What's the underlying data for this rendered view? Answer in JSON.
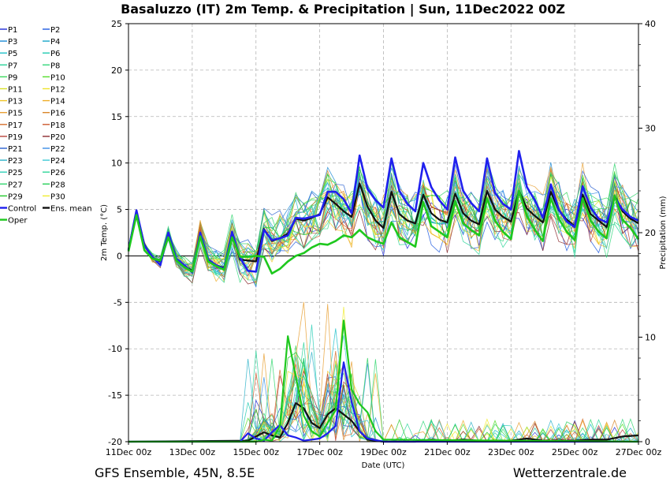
{
  "chart_data": {
    "type": "line",
    "title": "Basaluzzo  (IT)  2m Temp. & Precipitation | Sun, 11Dec2022 00Z",
    "xlabel": "Date (UTC)",
    "ylabel_left": "2m Temp. (°C)",
    "ylabel_right": "Precipitation (mm)",
    "xlim": [
      0,
      16
    ],
    "ylim_left": [
      -20,
      25
    ],
    "ylim_right": [
      0,
      40
    ],
    "yticks_left": [
      "-20",
      "-15",
      "-10",
      "-5",
      "0",
      "5",
      "10",
      "15",
      "20",
      "25"
    ],
    "yticks_right": [
      "0",
      "10",
      "20",
      "30",
      "40"
    ],
    "xticks": [
      {
        "v": 0,
        "label": "11Dec 00z"
      },
      {
        "v": 2,
        "label": "13Dec 00z"
      },
      {
        "v": 4,
        "label": "15Dec 00z"
      },
      {
        "v": 6,
        "label": "17Dec 00z"
      },
      {
        "v": 8,
        "label": "19Dec 00z"
      },
      {
        "v": 10,
        "label": "21Dec 00z"
      },
      {
        "v": 12,
        "label": "23Dec 00z"
      },
      {
        "v": 14,
        "label": "25Dec 00z"
      },
      {
        "v": 16,
        "label": "27Dec 00z"
      }
    ],
    "grid": true,
    "legend_position": "left",
    "legend": [
      {
        "name": "P1",
        "color": "#1f2bd6"
      },
      {
        "name": "P2",
        "color": "#1f5ae0"
      },
      {
        "name": "P3",
        "color": "#1c8ad6"
      },
      {
        "name": "P4",
        "color": "#19a6c9"
      },
      {
        "name": "P5",
        "color": "#1fc0c9"
      },
      {
        "name": "P6",
        "color": "#22cbb0"
      },
      {
        "name": "P7",
        "color": "#2ad39a"
      },
      {
        "name": "P8",
        "color": "#34d77c"
      },
      {
        "name": "P9",
        "color": "#3ad95c"
      },
      {
        "name": "P10",
        "color": "#55dd2a"
      },
      {
        "name": "P11",
        "color": "#d8e02a"
      },
      {
        "name": "P12",
        "color": "#eee22c"
      },
      {
        "name": "P13",
        "color": "#f0c52a"
      },
      {
        "name": "P14",
        "color": "#eeae2a"
      },
      {
        "name": "P15",
        "color": "#e8a034"
      },
      {
        "name": "P16",
        "color": "#d9872a"
      },
      {
        "name": "P17",
        "color": "#d66f2c"
      },
      {
        "name": "P18",
        "color": "#cc5a2e"
      },
      {
        "name": "P19",
        "color": "#b8423a"
      },
      {
        "name": "P20",
        "color": "#8c2a2e"
      },
      {
        "name": "P21",
        "color": "#2a5fd0"
      },
      {
        "name": "P22",
        "color": "#3b8fe6"
      },
      {
        "name": "P23",
        "color": "#2fb3c9"
      },
      {
        "name": "P24",
        "color": "#3fcad6"
      },
      {
        "name": "P25",
        "color": "#2fd0b9"
      },
      {
        "name": "P26",
        "color": "#2fd69a"
      },
      {
        "name": "P27",
        "color": "#33d770"
      },
      {
        "name": "P28",
        "color": "#28d05a"
      },
      {
        "name": "P29",
        "color": "#22c82a"
      },
      {
        "name": "P30",
        "color": "#f0ec30"
      },
      {
        "name": "Control",
        "color": "#2020ee"
      },
      {
        "name": "Ens. mean",
        "color": "#111111"
      },
      {
        "name": "Oper",
        "color": "#1ec81e"
      }
    ],
    "series": [
      {
        "name": "Ens. mean",
        "axis": "left",
        "color": "#111111",
        "x": [
          0,
          0.25,
          0.5,
          0.75,
          1,
          1.25,
          1.5,
          1.75,
          2,
          2.25,
          2.5,
          2.75,
          3,
          3.25,
          3.5,
          3.75,
          4,
          4.25,
          4.5,
          4.75,
          5,
          5.25,
          5.5,
          5.75,
          6,
          6.25,
          6.5,
          6.75,
          7,
          7.25,
          7.5,
          7.75,
          8,
          8.25,
          8.5,
          8.75,
          9,
          9.25,
          9.5,
          9.75,
          10,
          10.25,
          10.5,
          10.75,
          11,
          11.25,
          11.5,
          11.75,
          12,
          12.25,
          12.5,
          12.75,
          13,
          13.25,
          13.5,
          13.75,
          14,
          14.25,
          14.5,
          14.75,
          15,
          15.25,
          15.5,
          15.75,
          16
        ],
        "y": [
          0.7,
          4.8,
          1.2,
          -0.2,
          -0.6,
          2.4,
          -0.3,
          -1.1,
          -1.6,
          2.4,
          -0.4,
          -1.0,
          -1.3,
          2.3,
          -0.4,
          -0.5,
          -0.6,
          2.9,
          1.6,
          1.9,
          2.4,
          4.0,
          3.8,
          4.1,
          4.5,
          6.3,
          5.6,
          4.8,
          4.2,
          7.8,
          5.3,
          3.8,
          3.0,
          6.9,
          4.5,
          3.8,
          3.5,
          6.6,
          4.6,
          3.9,
          3.6,
          6.7,
          4.6,
          3.8,
          3.4,
          7.0,
          5.0,
          4.2,
          3.7,
          7.0,
          5.1,
          4.3,
          3.6,
          6.9,
          4.9,
          3.9,
          3.2,
          6.6,
          4.5,
          3.8,
          3.1,
          6.5,
          4.8,
          4.0,
          3.5
        ]
      },
      {
        "name": "Control",
        "axis": "left",
        "color": "#2020ee",
        "x": [
          0,
          0.25,
          0.5,
          0.75,
          1,
          1.25,
          1.5,
          1.75,
          2,
          2.25,
          2.5,
          2.75,
          3,
          3.25,
          3.5,
          3.75,
          4,
          4.25,
          4.5,
          4.75,
          5,
          5.25,
          5.5,
          5.75,
          6,
          6.25,
          6.5,
          6.75,
          7,
          7.25,
          7.5,
          7.75,
          8,
          8.25,
          8.5,
          8.75,
          9,
          9.25,
          9.5,
          9.75,
          10,
          10.25,
          10.5,
          10.75,
          11,
          11.25,
          11.5,
          11.75,
          12,
          12.25,
          12.5,
          12.75,
          13,
          13.25,
          13.5,
          13.75,
          14,
          14.25,
          14.5,
          14.75,
          15,
          15.25,
          15.5,
          15.75,
          16
        ],
        "y": [
          0.6,
          4.9,
          1.1,
          -0.1,
          -1.0,
          2.5,
          -0.3,
          -1.0,
          -1.8,
          2.5,
          -0.4,
          -1.0,
          -1.4,
          2.6,
          -0.2,
          -1.6,
          -1.7,
          2.8,
          1.7,
          1.9,
          2.2,
          4.1,
          4.0,
          4.2,
          4.4,
          6.9,
          6.9,
          6.1,
          4.6,
          10.8,
          7.2,
          6.0,
          5.2,
          10.5,
          7.0,
          5.6,
          4.8,
          10.0,
          7.4,
          6.0,
          5.0,
          10.6,
          7.0,
          5.7,
          4.8,
          10.5,
          6.8,
          5.6,
          5.0,
          11.3,
          7.4,
          6.0,
          4.1,
          7.7,
          5.0,
          3.7,
          3.1,
          7.5,
          5.2,
          4.0,
          3.6,
          6.3,
          5.0,
          4.2,
          3.8
        ]
      },
      {
        "name": "Oper",
        "axis": "left",
        "color": "#1ec81e",
        "x": [
          0,
          0.25,
          0.5,
          0.75,
          1,
          1.25,
          1.5,
          1.75,
          2,
          2.25,
          2.5,
          2.75,
          3,
          3.25,
          3.5,
          3.75,
          4,
          4.25,
          4.5,
          4.75,
          5,
          5.25,
          5.5,
          5.75,
          6,
          6.25,
          6.5,
          6.75,
          7,
          7.25,
          7.5,
          7.75,
          8,
          8.25,
          8.5,
          8.75,
          9,
          9.25,
          9.5,
          9.75,
          10,
          10.25,
          10.5,
          10.75,
          11,
          11.25,
          11.5,
          11.75,
          12,
          12.25,
          12.5,
          12.75,
          13,
          13.25,
          13.5,
          13.75,
          14,
          14.25,
          14.5,
          14.75,
          15,
          15.25,
          15.5,
          15.75,
          16
        ],
        "y": [
          0.5,
          4.4,
          0.6,
          -0.3,
          -0.5,
          2.0,
          -0.5,
          -1.2,
          -1.7,
          2.1,
          -0.6,
          -1.1,
          -1.5,
          2.0,
          -0.1,
          -0.1,
          0.0,
          -0.1,
          -1.9,
          -1.4,
          -0.6,
          0.0,
          0.3,
          0.9,
          1.3,
          1.2,
          1.6,
          2.2,
          2.0,
          2.8,
          2.0,
          1.6,
          1.3,
          3.6,
          2.0,
          1.5,
          1.0,
          5.8,
          3.2,
          2.6,
          2.0,
          5.9,
          3.5,
          2.8,
          2.2,
          6.2,
          3.8,
          2.6,
          1.8,
          7.0,
          4.3,
          2.8,
          1.6,
          6.2,
          4.0,
          2.6,
          1.7,
          6.2,
          3.8,
          2.6,
          1.9,
          6.5,
          3.9,
          3.0,
          1.8
        ]
      },
      {
        "name": "Ens. mean precipitation",
        "axis": "right",
        "color": "#111111",
        "x": [
          0,
          3.75,
          4,
          4.25,
          4.5,
          4.75,
          5,
          5.25,
          5.5,
          5.75,
          6,
          6.25,
          6.5,
          6.75,
          7,
          7.25,
          7.5,
          8,
          9,
          9.5,
          10,
          10.5,
          11,
          11.5,
          12,
          12.5,
          13,
          13.5,
          14,
          14.5,
          15,
          15.5,
          16
        ],
        "y": [
          0,
          0.1,
          0.5,
          0.9,
          0.6,
          0.4,
          1.8,
          3.7,
          3.2,
          1.8,
          1.3,
          2.6,
          3.2,
          2.6,
          2.0,
          1.0,
          0.2,
          0.0,
          0.0,
          0.2,
          0.1,
          0.2,
          0.1,
          0.1,
          0.1,
          0.3,
          0.1,
          0.1,
          0.1,
          0.2,
          0.2,
          0.5,
          0.6
        ]
      },
      {
        "name": "Control precipitation",
        "axis": "right",
        "color": "#2020ee",
        "x": [
          0,
          3.5,
          3.75,
          4,
          4.25,
          4.5,
          4.75,
          5,
          5.25,
          5.5,
          5.75,
          6,
          6.25,
          6.5,
          6.75,
          7,
          7.25,
          7.5,
          8,
          16
        ],
        "y": [
          0,
          0,
          0.8,
          0.3,
          0.1,
          0.9,
          1.6,
          0.6,
          0.4,
          0.1,
          0.2,
          0.3,
          0.8,
          1.5,
          7.6,
          3.8,
          1.0,
          0.3,
          0.0,
          0.0
        ]
      },
      {
        "name": "Oper precipitation",
        "axis": "right",
        "color": "#1ec81e",
        "x": [
          0,
          4,
          4.25,
          4.5,
          4.75,
          5,
          5.25,
          5.5,
          5.75,
          6,
          6.25,
          6.5,
          6.75,
          7,
          7.25,
          7.5,
          7.75,
          8,
          16
        ],
        "y": [
          0,
          0,
          0.2,
          0.1,
          1.5,
          10.1,
          6.2,
          2.5,
          1.0,
          0.5,
          1.8,
          3.0,
          11.6,
          5.0,
          3.6,
          2.8,
          1.0,
          0.2,
          0.0
        ]
      }
    ],
    "footer_left": "GFS Ensemble, 45N, 8.5E",
    "footer_right": "Wetterzentrale.de"
  }
}
